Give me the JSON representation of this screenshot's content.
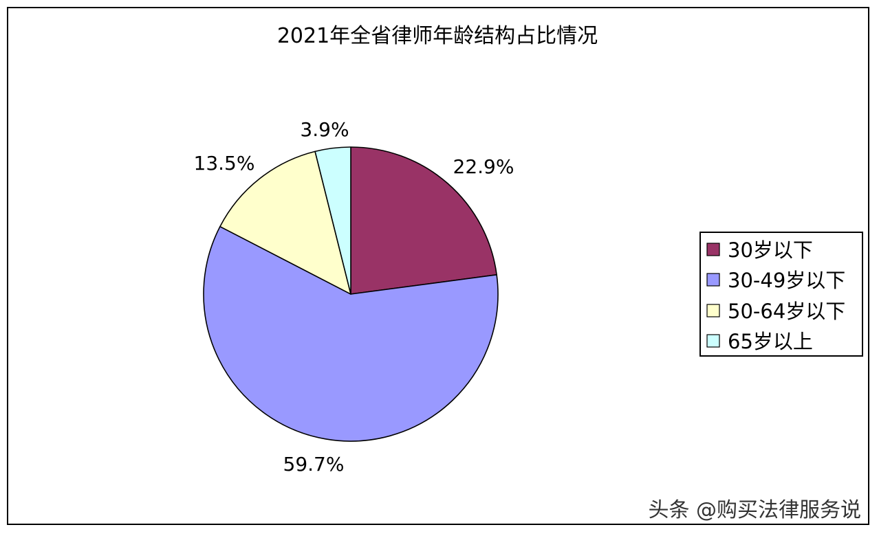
{
  "chart_data": {
    "type": "pie",
    "title": "2021年全省律师年龄结构占比情况",
    "categories": [
      "30岁以下",
      "30-49岁以下",
      "50-64岁以下",
      "65岁以上"
    ],
    "values": [
      22.9,
      59.7,
      13.5,
      3.9
    ],
    "data_labels": [
      "22.9%",
      "59.7%",
      "13.5%",
      "3.9%"
    ],
    "colors": [
      "#993366",
      "#9999FF",
      "#FFFFCC",
      "#CCFFFF"
    ],
    "legend_position": "right",
    "start_angle": "12 o'clock",
    "direction": "clockwise"
  },
  "watermark": {
    "text": "头条 @购买法律服务说"
  }
}
